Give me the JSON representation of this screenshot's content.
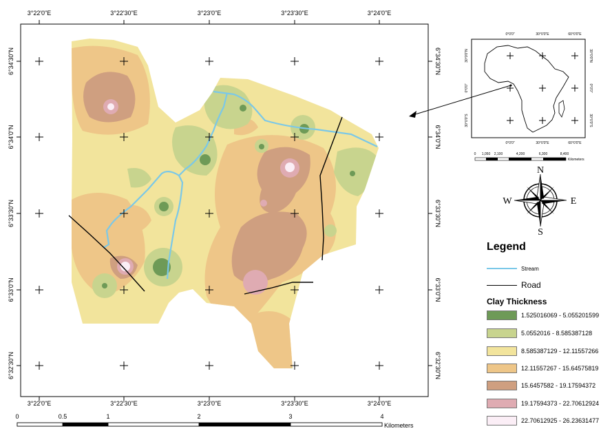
{
  "map": {
    "top_lon_labels": [
      "3°22'0\"E",
      "3°22'30\"E",
      "3°23'0\"E",
      "3°23'30\"E",
      "3°24'0\"E"
    ],
    "bottom_lon_labels": [
      "3°22'0\"E",
      "3°22'30\"E",
      "3°23'0\"E",
      "3°23'30\"E",
      "3°24'0\"E"
    ],
    "lat_labels": [
      "6°34'30\"N",
      "6°34'0\"N",
      "6°33'30\"N",
      "6°33'0\"N",
      "6°32'30\"N"
    ]
  },
  "scalebar": {
    "labels": [
      "0",
      "0.5",
      "1",
      "2",
      "3",
      "4"
    ],
    "unit": "Kilometers"
  },
  "inset": {
    "top_labels": [
      "0°0'0\"",
      "30°0'0\"E",
      "60°0'0\"E"
    ],
    "bottom_labels": [
      "0°0'0\"",
      "30°0'0\"E",
      "60°0'0\"E"
    ],
    "left_labels": [
      "30°0'0\"N",
      "0°0'0\"",
      "30°0'0\"S"
    ],
    "right_labels": [
      "30°0'0\"N",
      "0°0'0\"",
      "30°0'0\"S"
    ],
    "scale_labels": [
      "0",
      "1,050",
      "2,100",
      "4,200",
      "6,300",
      "8,400"
    ],
    "scale_unit": "Kilometers"
  },
  "north_arrow": {
    "n": "N",
    "s": "S",
    "e": "E",
    "w": "W"
  },
  "legend": {
    "title": "Legend",
    "stream_label": "Stream",
    "road_label": "Road",
    "clay_title": "Clay Thickness",
    "classes": [
      {
        "label": "1.525016069 - 5.055201599",
        "color": "#6e9a57"
      },
      {
        "label": "5.0552016 - 8.585387128",
        "color": "#c8d48e"
      },
      {
        "label": "8.585387129 - 12.11557266",
        "color": "#f2e49c"
      },
      {
        "label": "12.11557267 - 15.64575819",
        "color": "#eec688"
      },
      {
        "label": "15.6457582 - 19.17594372",
        "color": "#cf9f80"
      },
      {
        "label": "19.17594373 - 22.70612924",
        "color": "#dfabb2"
      },
      {
        "label": "22.70612925 - 26.23631477",
        "color": "#fbeef6"
      }
    ],
    "stream_color": "#7ac8e8",
    "road_color": "#000000"
  }
}
